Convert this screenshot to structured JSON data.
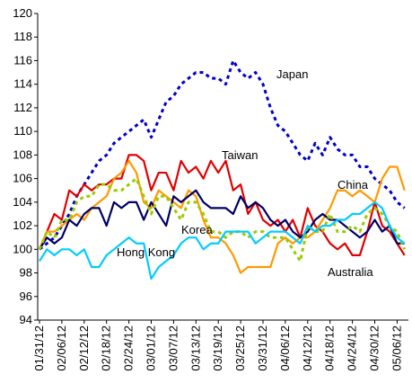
{
  "chart_data": {
    "type": "line",
    "categories": [
      "01/31/12",
      null,
      null,
      "02/06/12",
      null,
      null,
      "02/12/12",
      null,
      null,
      "02/18/12",
      null,
      null,
      "02/24/12",
      null,
      null,
      "03/01/12",
      null,
      null,
      "03/07/12",
      null,
      null,
      "03/13/12",
      null,
      null,
      "03/19/12",
      null,
      null,
      "03/25/12",
      null,
      null,
      "03/31/12",
      null,
      null,
      "04/06/12",
      null,
      null,
      "04/12/12",
      null,
      null,
      "04/18/12",
      null,
      null,
      "04/24/12",
      null,
      null,
      "04/30/12",
      null,
      null,
      "05/06/12",
      null
    ],
    "ylim": [
      94,
      120
    ],
    "yticks": [
      94,
      96,
      98,
      100,
      102,
      104,
      106,
      108,
      110,
      112,
      114,
      116,
      118,
      120
    ],
    "series": [
      {
        "name": "Japan",
        "color": "#0000cc",
        "dashed": true,
        "values": [
          100,
          100.5,
          101,
          102,
          103,
          104.5,
          105.5,
          106.5,
          107.5,
          108,
          109,
          109.5,
          110,
          110.5,
          111,
          109.5,
          111,
          112.5,
          113,
          114,
          114.5,
          115,
          115,
          114.5,
          114.5,
          114,
          116,
          115,
          114.5,
          115,
          114,
          112,
          110.5,
          110,
          109,
          108,
          107.5,
          109,
          108,
          109.5,
          108.5,
          108,
          108,
          107,
          107,
          106,
          105.5,
          105,
          104,
          103.5
        ]
      },
      {
        "name": "Taiwan",
        "color": "#e00000",
        "dashed": false,
        "values": [
          100,
          101.5,
          103,
          102.5,
          105,
          104.5,
          105.5,
          105,
          105.5,
          105.5,
          106,
          106,
          108,
          108,
          107.5,
          105,
          106.5,
          106.5,
          105,
          107.5,
          106.5,
          107,
          106,
          107.5,
          106.5,
          107.5,
          105,
          105.5,
          103,
          104,
          102.5,
          102,
          102.5,
          101.5,
          102.5,
          101,
          103.5,
          102,
          101.5,
          100.5,
          100,
          100.5,
          99.5,
          99.5,
          101.5,
          104,
          102,
          101.5,
          100.5,
          99.5
        ]
      },
      {
        "name": "China",
        "color": "#ff9900",
        "dashed": false,
        "values": [
          100,
          101.5,
          101.5,
          102,
          102.5,
          103,
          102.5,
          103.5,
          104,
          104.5,
          106,
          106.5,
          107.5,
          106.5,
          104,
          103.5,
          105,
          104.5,
          104,
          103.5,
          105,
          104.5,
          102.5,
          101,
          101,
          100.5,
          99.5,
          98,
          98.5,
          98.5,
          98.5,
          98.5,
          100.5,
          101,
          100.5,
          101,
          101,
          101.5,
          102.5,
          103.5,
          105,
          105,
          104.5,
          105,
          104.5,
          104,
          106,
          107,
          107,
          105
        ]
      },
      {
        "name": "Korea",
        "color": "#000066",
        "dashed": false,
        "values": [
          100,
          101,
          100.5,
          101,
          102.5,
          102,
          103,
          103.5,
          103.5,
          102,
          104,
          103.5,
          104,
          104,
          102.5,
          104,
          103,
          102,
          104.5,
          104,
          104.5,
          105,
          104,
          103.5,
          103.5,
          103.5,
          103,
          104.5,
          103.5,
          104,
          103.5,
          102.5,
          102,
          102.5,
          101.5,
          101,
          101.5,
          102.5,
          103,
          102.5,
          102.5,
          102,
          101.5,
          101,
          101.5,
          102.5,
          101.5,
          102,
          100.5,
          100.5
        ]
      },
      {
        "name": "Hong Kong",
        "color": "#99cc00",
        "dashed": true,
        "values": [
          100,
          101.5,
          101,
          102.5,
          102.5,
          104,
          104.5,
          104.5,
          105.5,
          105.5,
          105,
          105,
          105.5,
          106,
          104.5,
          103,
          104.5,
          104.5,
          103.5,
          102.5,
          104,
          104,
          103,
          101.5,
          101.5,
          101,
          101.5,
          101.5,
          101,
          101.5,
          101.5,
          101,
          101,
          101,
          100,
          99,
          102,
          101.5,
          101.5,
          103,
          101.5,
          101.5,
          102,
          101.5,
          103,
          103.5,
          103,
          102,
          101.5,
          100
        ]
      },
      {
        "name": "Australia",
        "color": "#00ccff",
        "dashed": false,
        "values": [
          99,
          100,
          99.5,
          100,
          100,
          99.5,
          100,
          98.5,
          98.5,
          99.5,
          100,
          100.5,
          101,
          100.5,
          100.5,
          97.5,
          98.5,
          99,
          99.5,
          100.5,
          101,
          101,
          100,
          100.5,
          100.5,
          101.5,
          101.5,
          101.5,
          101.5,
          100.5,
          101,
          101.5,
          101.5,
          101.5,
          101,
          100.5,
          102,
          101.5,
          102,
          102,
          102.5,
          102.5,
          103,
          103,
          103.5,
          104,
          103.5,
          102,
          101,
          100.5
        ]
      }
    ]
  }
}
